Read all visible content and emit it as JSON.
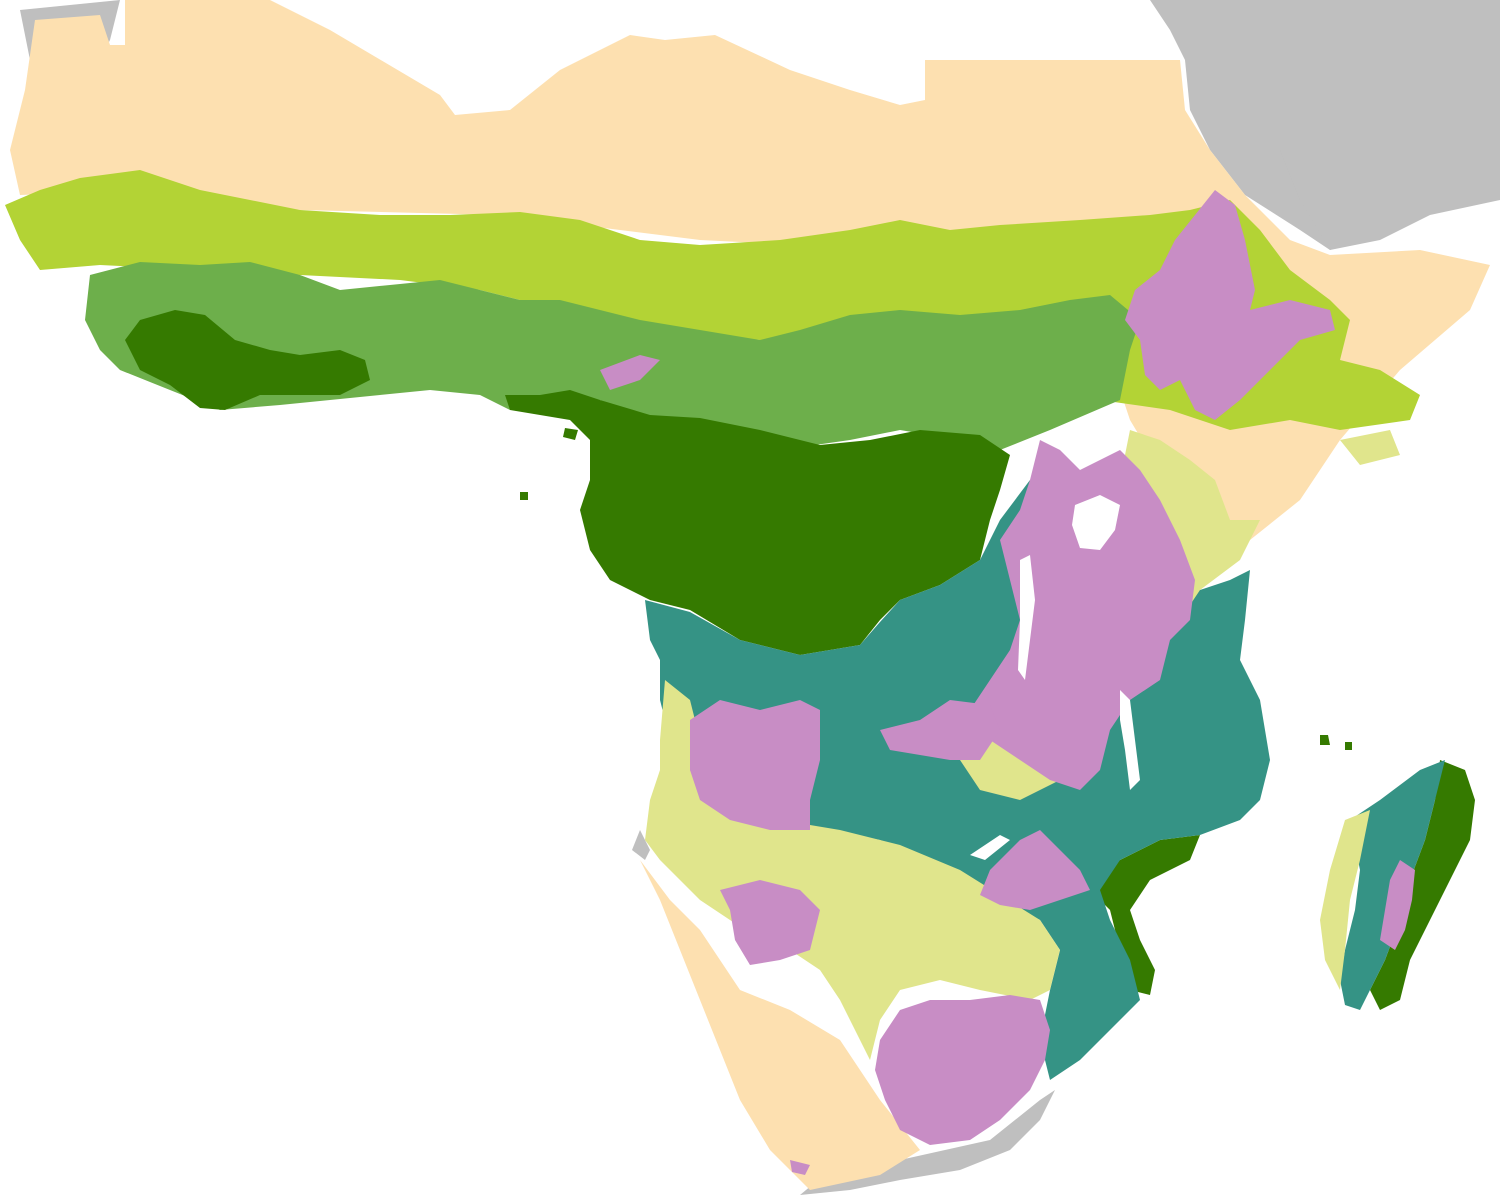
{
  "map": {
    "type": "choropleth",
    "legend": [],
    "labels": []
  },
  "colors": {
    "ocean": "#ffffff",
    "outside_region": "#bfbfbf",
    "lakes": "#ffffff",
    "arid": "#fde0b0",
    "semi_arid_north": "#b3d335",
    "sub_humid_north": "#6daf4b",
    "humid_tropical": "#357a00",
    "sub_humid_south": "#359385",
    "highland": "#c88dc5",
    "semi_arid_south": "#e0e58c"
  },
  "zones": [
    {
      "id": "arid",
      "color_key": "arid"
    },
    {
      "id": "semi-arid-north",
      "color_key": "semi_arid_north"
    },
    {
      "id": "sub-humid-north",
      "color_key": "sub_humid_north"
    },
    {
      "id": "humid-tropical",
      "color_key": "humid_tropical"
    },
    {
      "id": "sub-humid-south",
      "color_key": "sub_humid_south"
    },
    {
      "id": "semi-arid-south",
      "color_key": "semi_arid_south"
    },
    {
      "id": "highland",
      "color_key": "highland"
    }
  ]
}
